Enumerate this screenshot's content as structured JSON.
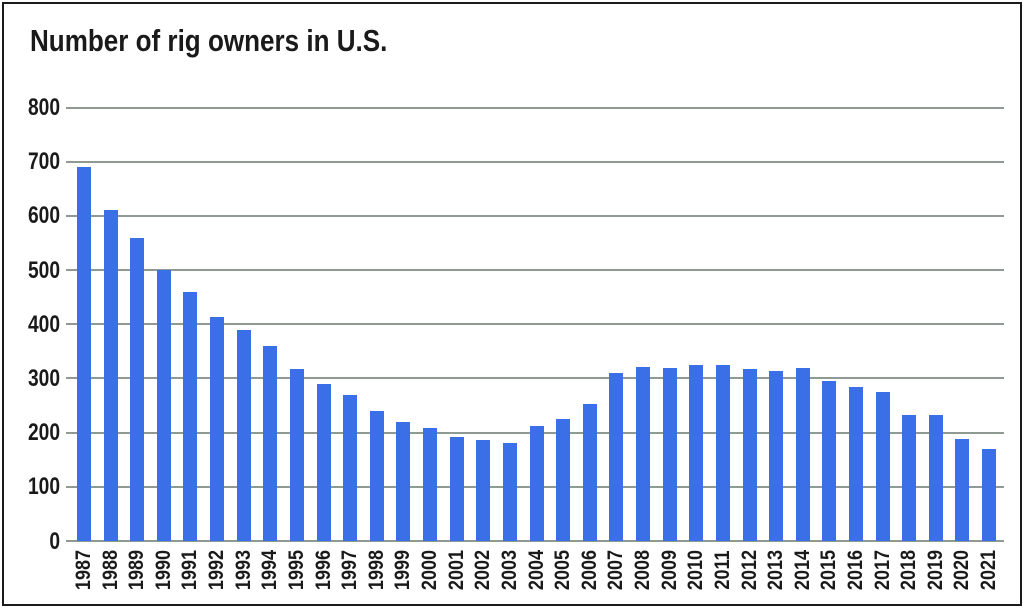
{
  "page": {
    "background": "#ffffff",
    "frame_border_color": "#1b1b1b"
  },
  "chart_data": {
    "type": "bar",
    "title": "Number of rig owners in U.S.",
    "categories": [
      "1987",
      "1988",
      "1989",
      "1990",
      "1991",
      "1992",
      "1993",
      "1994",
      "1995",
      "1996",
      "1997",
      "1998",
      "1999",
      "2000",
      "2001",
      "2002",
      "2003",
      "2004",
      "2005",
      "2006",
      "2007",
      "2008",
      "2009",
      "2010",
      "2011",
      "2012",
      "2013",
      "2014",
      "2015",
      "2016",
      "2017",
      "2018",
      "2019",
      "2020",
      "2021"
    ],
    "values": [
      690,
      610,
      560,
      500,
      460,
      413,
      390,
      360,
      317,
      290,
      270,
      240,
      220,
      208,
      192,
      186,
      180,
      213,
      226,
      253,
      310,
      321,
      320,
      324,
      325,
      318,
      314,
      320,
      296,
      285,
      275,
      232,
      232,
      188,
      170
    ],
    "xlabel": "",
    "ylabel": "",
    "ylim": [
      0,
      800
    ],
    "yticks": [
      0,
      100,
      200,
      300,
      400,
      500,
      600,
      700,
      800
    ],
    "grid": true,
    "legend": null,
    "bar_color": "#3b6fe8",
    "gridline_color": "#8f9a93",
    "title_color": "#1a1a1a",
    "tick_label_color": "#1a1a1a"
  }
}
